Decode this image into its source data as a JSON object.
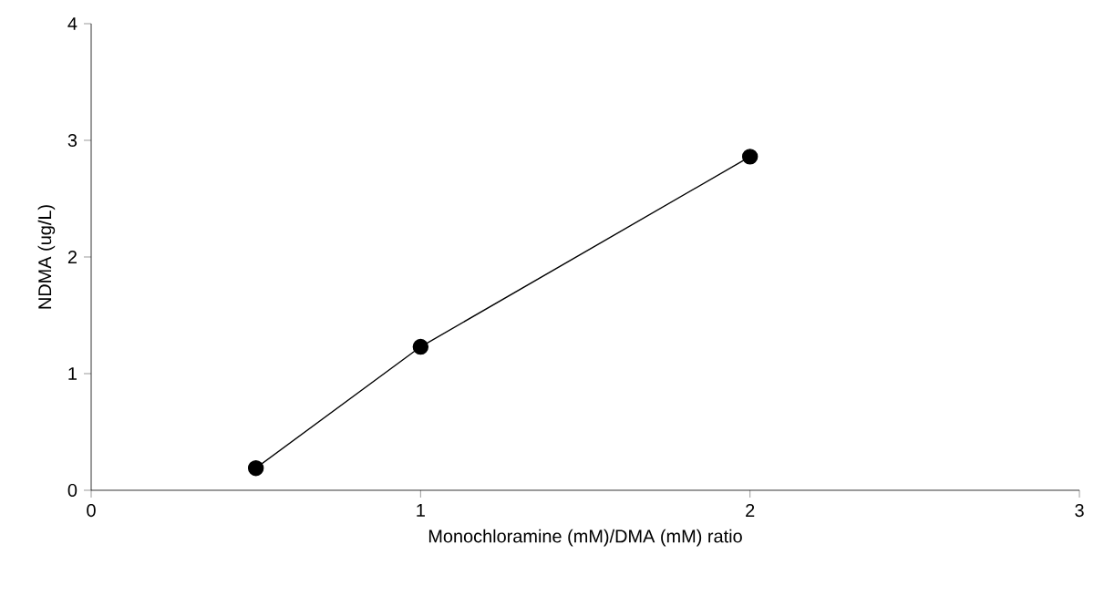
{
  "chart_data": {
    "type": "line",
    "xlabel": "Monochloramine (mM)/DMA (mM) ratio",
    "ylabel": "NDMA (ug/L)",
    "x": [
      0.5,
      1,
      2
    ],
    "series": [
      {
        "color": "#000000",
        "values": [
          0.19,
          1.23,
          2.86
        ]
      }
    ],
    "xlim": [
      0,
      3
    ],
    "xticks": [
      0,
      1,
      2,
      3
    ],
    "ylim": [
      0,
      4
    ],
    "yticks": [
      0,
      1,
      2,
      3,
      4
    ],
    "marker": "circle",
    "line_style": "solid",
    "grid": false
  }
}
